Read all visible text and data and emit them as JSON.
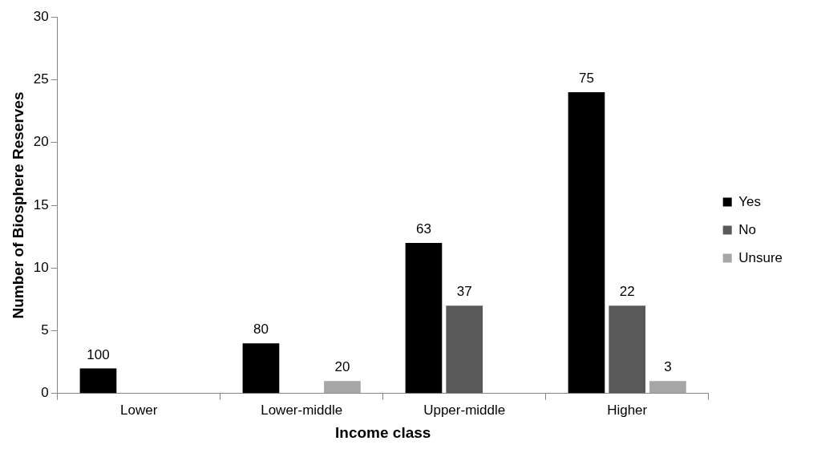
{
  "chart_data": {
    "type": "bar",
    "xlabel": "Income class",
    "ylabel": "Number of Biosphere Reserves",
    "categories": [
      "Lower",
      "Lower-middle",
      "Upper-middle",
      "Higher"
    ],
    "series": [
      {
        "name": "Yes",
        "color": "#000000",
        "values": [
          2,
          4,
          12,
          24
        ]
      },
      {
        "name": "No",
        "color": "#595959",
        "values": [
          null,
          null,
          7,
          7
        ]
      },
      {
        "name": "Unsure",
        "color": "#a6a6a6",
        "values": [
          null,
          1,
          null,
          1
        ]
      }
    ],
    "annotations": [
      "100",
      "80",
      "20",
      "63",
      "37",
      "75",
      "22",
      "3"
    ],
    "ylim": [
      0,
      30
    ],
    "yticks": [
      0,
      5,
      10,
      15,
      20,
      25,
      30
    ],
    "grid": false,
    "legend": "right"
  }
}
